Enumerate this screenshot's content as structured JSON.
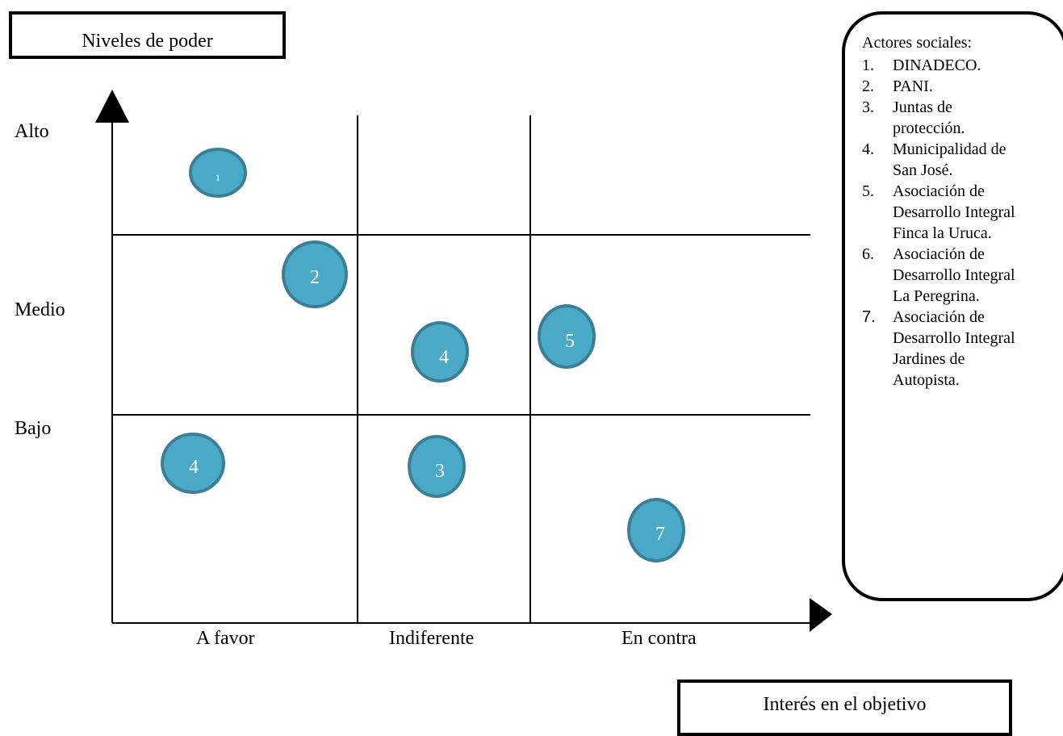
{
  "y_axis_title": "Niveles de poder",
  "x_axis_title": "Interés en el objetivo",
  "y_levels": [
    "Alto",
    "Medio",
    "Bajo"
  ],
  "x_levels": [
    "A favor",
    "Indiferente",
    "En contra"
  ],
  "actors_heading": "Actores sociales:",
  "actors": [
    {
      "num": "1.",
      "name": "DINADECO."
    },
    {
      "num": "2.",
      "name": "PANI."
    },
    {
      "num": "3.",
      "name": "Juntas de protección."
    },
    {
      "num": "4.",
      "name": "Municipalidad de San José."
    },
    {
      "num": "5.",
      "name": "Asociación de Desarrollo Integral Finca la Uruca."
    },
    {
      "num": "6.",
      "name": "Asociación de Desarrollo Integral La Peregrina."
    },
    {
      "num": "7.",
      "name": "Asociación de Desarrollo Integral Jardines de Autopista."
    }
  ],
  "bubbles": [
    "1",
    "2",
    "4",
    "5",
    "4",
    "3",
    "7"
  ],
  "colors": {
    "bubble_fill": "#4aa9c6",
    "bubble_stroke": "#3b7f97",
    "line": "#000000"
  }
}
